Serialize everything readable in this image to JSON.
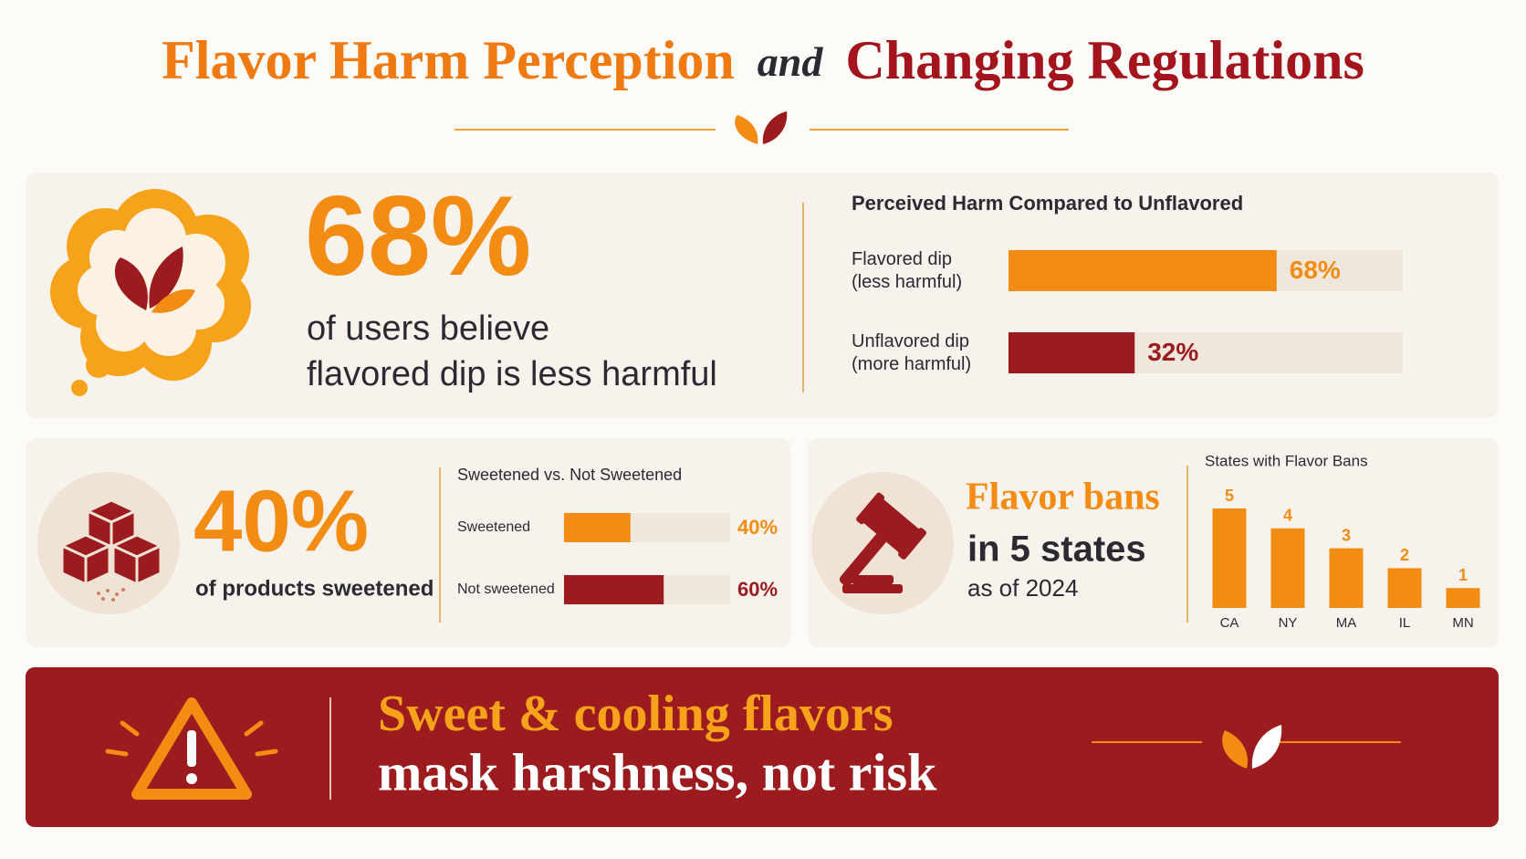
{
  "header": {
    "title_part1": "Flavor Harm Perception",
    "title_part2": "and",
    "title_part3": "Changing Regulations"
  },
  "stats": [
    {
      "value": "68%",
      "caption_lines": [
        "of users believe",
        "flavored dip is less harmful"
      ]
    },
    {
      "value": "40%",
      "caption": "of products sweetened"
    }
  ],
  "bans": {
    "headline": "Flavor bans",
    "line": "in 5 states",
    "note": "as of 2024"
  },
  "banner": {
    "line1": "Sweet & cooling flavors",
    "line2": "mask harshness, not risk"
  },
  "chart_data": [
    {
      "type": "hbar",
      "title": "Perceived Harm Compared to Unflavored",
      "categories": [
        "Flavored dip (less harmful)",
        "Unflavored dip (more harmful)"
      ],
      "values": [
        68,
        32
      ],
      "value_labels": [
        "68%",
        "32%"
      ],
      "colors": [
        "#f28c13",
        "#9b1b1f"
      ],
      "xlim": [
        0,
        100
      ]
    },
    {
      "type": "hbar",
      "title": "Sweetened vs. Not Sweetened",
      "categories": [
        "Sweetened",
        "Not sweetened"
      ],
      "values": [
        40,
        60
      ],
      "value_labels": [
        "40%",
        "60%"
      ],
      "colors": [
        "#f28c13",
        "#9b1b1f"
      ],
      "xlim": [
        0,
        100
      ]
    },
    {
      "type": "bar",
      "title": "States with Flavor Bans",
      "categories": [
        "CA",
        "NY",
        "MA",
        "IL",
        "MN"
      ],
      "values": [
        5,
        4,
        3,
        2,
        1
      ],
      "color": "#f28c13",
      "ylim": [
        0,
        5
      ]
    }
  ]
}
